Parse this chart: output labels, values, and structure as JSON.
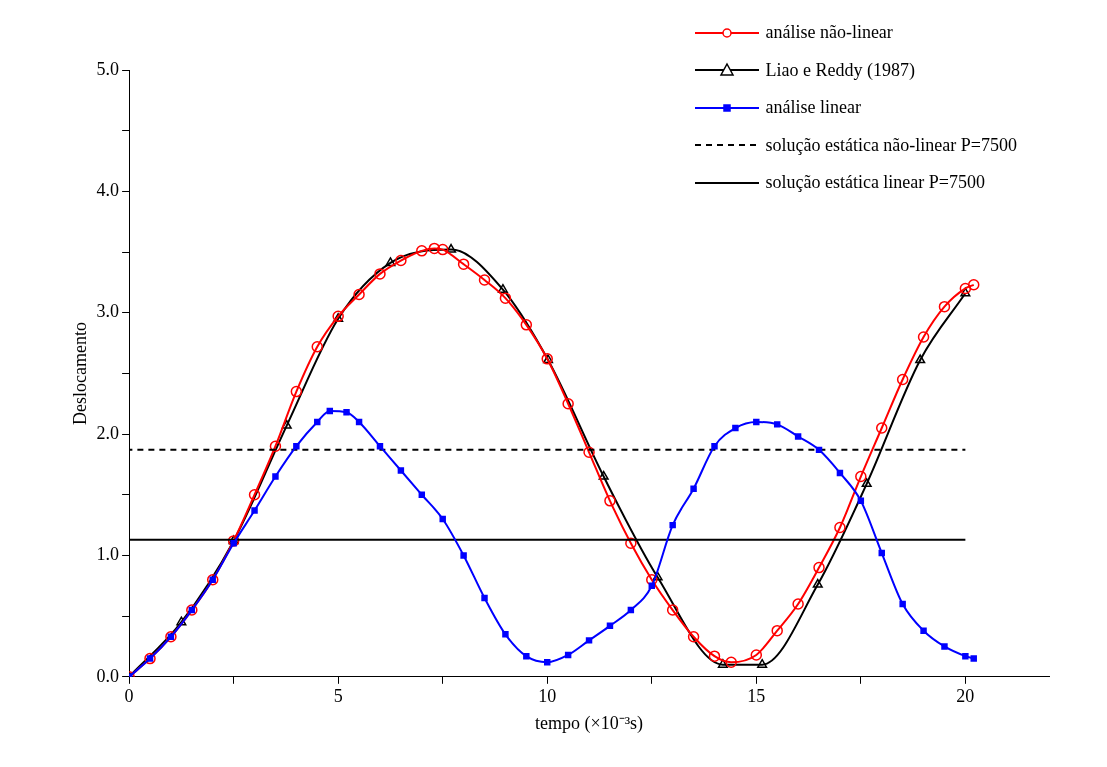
{
  "chart_data": {
    "type": "line",
    "xlabel": "tempo (×10⁻³s)",
    "ylabel": "Deslocamento",
    "xlim": [
      0,
      22
    ],
    "xticks": [
      0,
      {
        "value": 2.5,
        "label": null
      },
      5,
      {
        "value": 7.5,
        "label": null
      },
      10,
      {
        "value": 12.5,
        "label": null
      },
      15,
      {
        "value": 17.5,
        "label": null
      },
      20
    ],
    "ylim": [
      0,
      5
    ],
    "yticks": [
      {
        "value": 0,
        "label": "0.0"
      },
      {
        "value": 0.5,
        "label": null
      },
      {
        "value": 1,
        "label": "1.0"
      },
      {
        "value": 1.5,
        "label": null
      },
      {
        "value": 2,
        "label": "2.0"
      },
      {
        "value": 2.5,
        "label": null
      },
      {
        "value": 3,
        "label": "3.0"
      },
      {
        "value": 3.5,
        "label": null
      },
      {
        "value": 4,
        "label": "4.0"
      },
      {
        "value": 4.5,
        "label": null
      },
      {
        "value": 5,
        "label": "5.0"
      }
    ],
    "grid": false,
    "legend": "top right",
    "series": [
      {
        "name": "análise não-linear",
        "color": "#ff0000",
        "marker": "circle",
        "line_style": "solid",
        "x": [
          0,
          0.5,
          1,
          1.5,
          2,
          2.5,
          3,
          3.5,
          4,
          4.5,
          5,
          5.5,
          6,
          6.5,
          7,
          7.3,
          7.5,
          8,
          8.5,
          9,
          9.5,
          10,
          10.5,
          11,
          11.5,
          12,
          12.5,
          13,
          13.5,
          14,
          14.4,
          15,
          15.5,
          16,
          16.5,
          17,
          17.5,
          18,
          18.5,
          19,
          19.5,
          20,
          20.2
        ],
        "values": [
          0,
          0.15,
          0.33,
          0.55,
          0.8,
          1.12,
          1.5,
          1.9,
          2.35,
          2.72,
          2.97,
          3.15,
          3.32,
          3.43,
          3.51,
          3.53,
          3.52,
          3.4,
          3.27,
          3.12,
          2.9,
          2.62,
          2.25,
          1.85,
          1.45,
          1.1,
          0.8,
          0.55,
          0.33,
          0.17,
          0.12,
          0.18,
          0.38,
          0.6,
          0.9,
          1.23,
          1.65,
          2.05,
          2.45,
          2.8,
          3.05,
          3.2,
          3.23
        ]
      },
      {
        "name": "Liao e Reddy (1987)",
        "color": "#000000",
        "marker": "triangle",
        "line_style": "solid",
        "x": [
          0,
          1.25,
          2.5,
          3.77,
          5,
          6.25,
          7.7,
          8.94,
          10.02,
          11.35,
          12.64,
          14.2,
          15.14,
          16.47,
          17.64,
          18.92,
          20
        ],
        "values": [
          0,
          0.45,
          1.12,
          2.07,
          2.95,
          3.41,
          3.52,
          3.19,
          2.61,
          1.65,
          0.82,
          0.1,
          0.1,
          0.76,
          1.59,
          2.61,
          3.16
        ]
      },
      {
        "name": "análise linear",
        "color": "#0000ff",
        "marker": "square",
        "line_style": "solid",
        "x": [
          0,
          0.5,
          1,
          1.5,
          2,
          2.5,
          3,
          3.5,
          4,
          4.5,
          4.8,
          5.2,
          5.5,
          6,
          6.5,
          7,
          7.5,
          8,
          8.5,
          9,
          9.5,
          10,
          10.5,
          11,
          11.5,
          12,
          12.5,
          13,
          13.5,
          14,
          14.5,
          15,
          15.5,
          16,
          16.5,
          17,
          17.5,
          18,
          18.5,
          19,
          19.5,
          20,
          20.2
        ],
        "values": [
          0,
          0.15,
          0.33,
          0.55,
          0.8,
          1.1,
          1.37,
          1.65,
          1.9,
          2.1,
          2.19,
          2.18,
          2.1,
          1.9,
          1.7,
          1.5,
          1.3,
          1.0,
          0.65,
          0.35,
          0.17,
          0.12,
          0.18,
          0.3,
          0.42,
          0.55,
          0.75,
          1.25,
          1.55,
          1.9,
          2.05,
          2.1,
          2.08,
          1.98,
          1.87,
          1.68,
          1.45,
          1.02,
          0.6,
          0.38,
          0.25,
          0.17,
          0.15
        ]
      },
      {
        "name": "solução estática não-linear P=7500",
        "color": "#000000",
        "marker": "none",
        "line_style": "dashed",
        "x": [
          0,
          20
        ],
        "values": [
          1.87,
          1.87
        ]
      },
      {
        "name": "solução estática linear P=7500",
        "color": "#000000",
        "marker": "none",
        "line_style": "solid",
        "x": [
          0,
          20
        ],
        "values": [
          1.13,
          1.13
        ]
      }
    ]
  }
}
